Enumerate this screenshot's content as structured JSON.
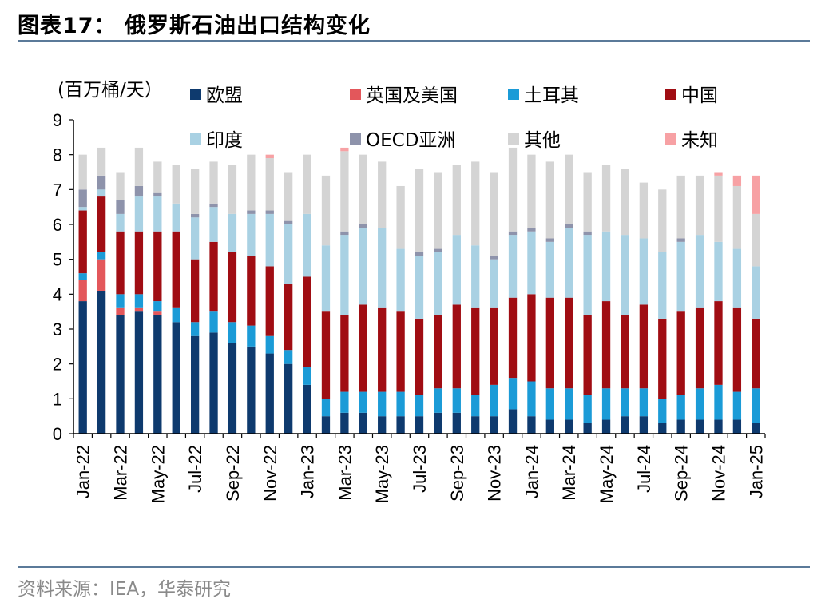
{
  "header": {
    "title": "图表17：  俄罗斯石油出口结构变化"
  },
  "footer": {
    "source": "资料来源：IEA，华泰研究"
  },
  "chart_data": {
    "type": "bar",
    "stacked": true,
    "unit_label": "(百万桶/天）",
    "ylim": [
      0,
      9
    ],
    "yticks": [
      0,
      1,
      2,
      3,
      4,
      5,
      6,
      7,
      8,
      9
    ],
    "grid": false,
    "legend_position": "top",
    "categories": [
      "Jan-22",
      "Feb-22",
      "Mar-22",
      "Apr-22",
      "May-22",
      "Jun-22",
      "Jul-22",
      "Aug-22",
      "Sep-22",
      "Oct-22",
      "Nov-22",
      "Dec-22",
      "Jan-23",
      "Feb-23",
      "Mar-23",
      "Apr-23",
      "May-23",
      "Jun-23",
      "Jul-23",
      "Aug-23",
      "Sep-23",
      "Oct-23",
      "Nov-23",
      "Dec-23",
      "Jan-24",
      "Feb-24",
      "Mar-24",
      "Apr-24",
      "May-24",
      "Jun-24",
      "Jul-24",
      "Aug-24",
      "Sep-24",
      "Oct-24",
      "Nov-24",
      "Dec-24",
      "Jan-25"
    ],
    "xticklabels": [
      "Jan-22",
      "",
      "Mar-22",
      "",
      "May-22",
      "",
      "Jul-22",
      "",
      "Sep-22",
      "",
      "Nov-22",
      "",
      "Jan-23",
      "",
      "Mar-23",
      "",
      "May-23",
      "",
      "Jul-23",
      "",
      "Sep-23",
      "",
      "Nov-23",
      "",
      "Jan-24",
      "",
      "Mar-24",
      "",
      "May-24",
      "",
      "Jul-24",
      "",
      "Sep-24",
      "",
      "Nov-24",
      "",
      "Jan-25"
    ],
    "series": [
      {
        "name": "欧盟",
        "color": "#0e3a6e",
        "values": [
          3.8,
          4.1,
          3.4,
          3.5,
          3.4,
          3.2,
          2.8,
          2.9,
          2.6,
          2.5,
          2.3,
          2.0,
          1.4,
          0.5,
          0.6,
          0.6,
          0.5,
          0.5,
          0.5,
          0.6,
          0.6,
          0.5,
          0.5,
          0.7,
          0.5,
          0.4,
          0.4,
          0.3,
          0.4,
          0.5,
          0.5,
          0.3,
          0.4,
          0.4,
          0.4,
          0.4,
          0.3
        ]
      },
      {
        "name": "英国及美国",
        "color": "#e3575b",
        "values": [
          0.6,
          0.9,
          0.2,
          0.1,
          0.1,
          0,
          0,
          0,
          0,
          0,
          0,
          0,
          0,
          0,
          0,
          0,
          0,
          0,
          0,
          0,
          0,
          0,
          0,
          0,
          0,
          0,
          0,
          0,
          0,
          0,
          0,
          0,
          0,
          0,
          0,
          0,
          0
        ]
      },
      {
        "name": "土耳其",
        "color": "#1b9bd7",
        "values": [
          0.2,
          0.2,
          0.4,
          0.4,
          0.3,
          0.4,
          0.4,
          0.6,
          0.6,
          0.6,
          0.5,
          0.4,
          0.5,
          0.5,
          0.6,
          0.6,
          0.7,
          0.7,
          0.6,
          0.7,
          0.7,
          0.6,
          0.9,
          0.9,
          1.0,
          0.9,
          0.9,
          0.8,
          0.9,
          0.8,
          0.8,
          0.7,
          0.7,
          0.9,
          1.0,
          0.8,
          1.0
        ]
      },
      {
        "name": "中国",
        "color": "#a00d13",
        "values": [
          1.8,
          1.6,
          1.8,
          1.8,
          2.0,
          2.2,
          1.8,
          2.0,
          2.0,
          2.0,
          2.0,
          1.9,
          2.6,
          2.5,
          2.2,
          2.5,
          2.4,
          2.3,
          2.2,
          2.1,
          2.4,
          2.5,
          2.2,
          2.3,
          2.5,
          2.6,
          2.6,
          2.3,
          2.5,
          2.1,
          2.4,
          2.3,
          2.4,
          2.3,
          2.4,
          2.4,
          2.0
        ]
      },
      {
        "name": "印度",
        "color": "#a9d1e3",
        "values": [
          0.1,
          0.2,
          0.5,
          1.0,
          1.0,
          0.8,
          1.2,
          1.0,
          1.1,
          1.2,
          1.5,
          1.7,
          1.8,
          1.9,
          2.3,
          2.2,
          2.3,
          1.8,
          1.8,
          1.8,
          2.0,
          1.8,
          1.4,
          1.8,
          1.8,
          1.6,
          2.0,
          2.3,
          2.0,
          2.3,
          1.9,
          1.9,
          2.0,
          2.1,
          1.7,
          1.7,
          1.5
        ]
      },
      {
        "name": "OECD亚洲",
        "color": "#8e93ab",
        "values": [
          0.5,
          0.4,
          0.4,
          0.3,
          0.1,
          0,
          0.1,
          0.1,
          0,
          0.1,
          0.1,
          0.1,
          0,
          0,
          0.1,
          0.1,
          0,
          0,
          0.1,
          0.1,
          0,
          0,
          0.1,
          0.1,
          0.1,
          0.1,
          0.1,
          0.1,
          0,
          0,
          0,
          0,
          0.1,
          0,
          0,
          0,
          0
        ]
      },
      {
        "name": "其他",
        "color": "#d4d4d4",
        "values": [
          1.0,
          0.8,
          0.8,
          1.1,
          0.9,
          1.1,
          1.3,
          1.2,
          1.4,
          1.6,
          1.5,
          1.4,
          1.7,
          2.0,
          2.3,
          2.0,
          1.9,
          1.8,
          2.4,
          2.2,
          2.0,
          2.4,
          2.4,
          2.4,
          2.1,
          2.2,
          2.0,
          1.7,
          1.9,
          1.9,
          1.6,
          1.8,
          1.8,
          1.7,
          1.9,
          1.8,
          1.5
        ]
      },
      {
        "name": "未知",
        "color": "#f7a1a4",
        "values": [
          0,
          0,
          0,
          0,
          0,
          0,
          0,
          0,
          0,
          0,
          0.1,
          0,
          0,
          0,
          0.1,
          0,
          0,
          0,
          0,
          0,
          0,
          0,
          0,
          0,
          0,
          0,
          0,
          0,
          0,
          0,
          0,
          0,
          0,
          0,
          0.1,
          0.3,
          1.1
        ]
      }
    ]
  }
}
